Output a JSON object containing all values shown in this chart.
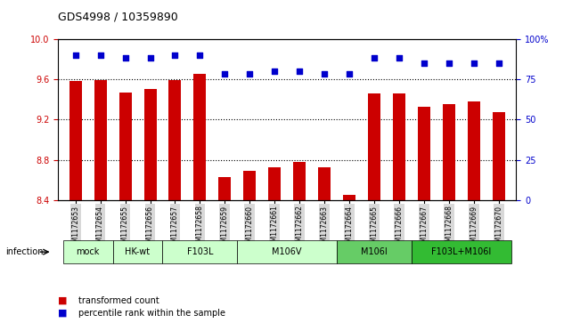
{
  "title": "GDS4998 / 10359890",
  "samples": [
    "GSM1172653",
    "GSM1172654",
    "GSM1172655",
    "GSM1172656",
    "GSM1172657",
    "GSM1172658",
    "GSM1172659",
    "GSM1172660",
    "GSM1172661",
    "GSM1172662",
    "GSM1172663",
    "GSM1172664",
    "GSM1172665",
    "GSM1172666",
    "GSM1172667",
    "GSM1172668",
    "GSM1172669",
    "GSM1172670"
  ],
  "bar_values": [
    9.58,
    9.59,
    9.47,
    9.5,
    9.59,
    9.65,
    8.63,
    8.69,
    8.73,
    8.78,
    8.73,
    8.45,
    9.46,
    9.46,
    9.33,
    9.35,
    9.38,
    9.27
  ],
  "percentile_values": [
    90,
    90,
    88,
    88,
    90,
    90,
    78,
    78,
    80,
    80,
    78,
    78,
    88,
    88,
    85,
    85,
    85,
    85
  ],
  "ylim": [
    8.4,
    10.0
  ],
  "yticks_left": [
    8.4,
    8.8,
    9.2,
    9.6,
    10.0
  ],
  "yticks_right": [
    0,
    25,
    50,
    75,
    100
  ],
  "ylabel_left_color": "#cc0000",
  "ylabel_right_color": "#0000cc",
  "bar_color": "#cc0000",
  "dot_color": "#0000cc",
  "groups": [
    {
      "label": "mock",
      "start": 0,
      "end": 2,
      "color": "#ccffcc"
    },
    {
      "label": "HK-wt",
      "start": 2,
      "end": 4,
      "color": "#ccffcc"
    },
    {
      "label": "F103L",
      "start": 4,
      "end": 7,
      "color": "#ccffcc"
    },
    {
      "label": "M106V",
      "start": 7,
      "end": 11,
      "color": "#ccffcc"
    },
    {
      "label": "M106I",
      "start": 11,
      "end": 14,
      "color": "#66cc66"
    },
    {
      "label": "F103L+M106I",
      "start": 14,
      "end": 18,
      "color": "#33bb33"
    }
  ],
  "infection_label": "infection",
  "legend_bar_label": "transformed count",
  "legend_dot_label": "percentile rank within the sample",
  "dotted_grid_values": [
    8.8,
    9.2,
    9.6
  ],
  "background_color": "#ffffff"
}
